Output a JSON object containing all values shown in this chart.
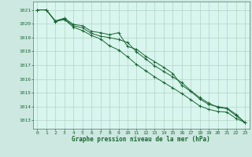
{
  "bg_color": "#cce8e0",
  "plot_bg_color": "#d8f5ee",
  "grid_color": "#aaccbb",
  "line_color": "#1a6633",
  "xlabel": "Graphe pression niveau de la mer (hPa)",
  "ylim": [
    1012.4,
    1021.6
  ],
  "xlim": [
    -0.5,
    23.5
  ],
  "yticks": [
    1013,
    1014,
    1015,
    1016,
    1017,
    1018,
    1019,
    1020,
    1021
  ],
  "xticks": [
    0,
    1,
    2,
    3,
    4,
    5,
    6,
    7,
    8,
    9,
    10,
    11,
    12,
    13,
    14,
    15,
    16,
    17,
    18,
    19,
    20,
    21,
    22,
    23
  ],
  "line1": [
    1021.0,
    1021.0,
    1020.2,
    1020.4,
    1019.95,
    1019.85,
    1019.45,
    1019.35,
    1019.2,
    1019.35,
    1018.35,
    1018.15,
    1017.65,
    1017.25,
    1016.85,
    1016.4,
    1015.55,
    1015.1,
    1014.55,
    1014.15,
    1014.0,
    1013.9,
    1013.45,
    1012.85
  ],
  "line2": [
    1021.0,
    1021.0,
    1020.2,
    1020.35,
    1019.85,
    1019.7,
    1019.3,
    1019.1,
    1019.0,
    1018.85,
    1018.65,
    1017.95,
    1017.45,
    1016.95,
    1016.55,
    1016.15,
    1015.75,
    1015.15,
    1014.65,
    1014.25,
    1013.95,
    1013.85,
    1013.35,
    1012.85
  ],
  "line3": [
    1021.0,
    1021.0,
    1020.15,
    1020.3,
    1019.75,
    1019.5,
    1019.15,
    1018.9,
    1018.4,
    1018.1,
    1017.6,
    1017.05,
    1016.6,
    1016.15,
    1015.75,
    1015.35,
    1014.95,
    1014.5,
    1014.05,
    1013.8,
    1013.65,
    1013.6,
    1013.15,
    1012.85
  ]
}
